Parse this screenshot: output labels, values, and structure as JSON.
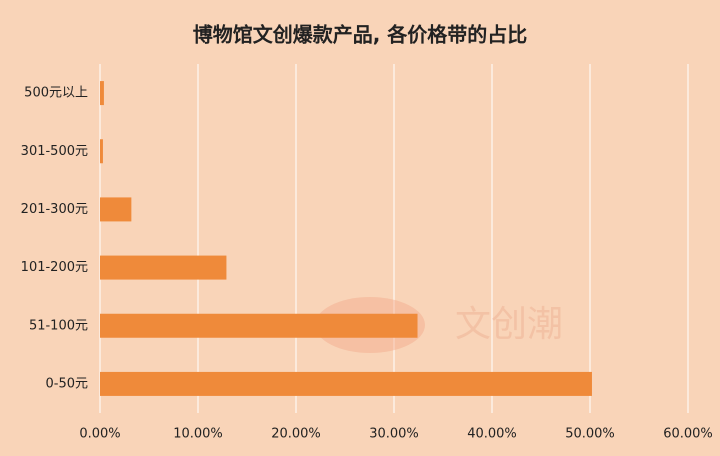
{
  "chart_data": {
    "type": "bar",
    "orientation": "horizontal",
    "title": "博物馆文创爆款产品, 各价格带的占比",
    "watermark": "文创潮",
    "categories": [
      "500元以上",
      "301-500元",
      "201-300元",
      "101-200元",
      "51-100元",
      "0-50元"
    ],
    "values": [
      0.4,
      0.3,
      3.2,
      12.9,
      32.4,
      50.2
    ],
    "color": "#ef8a3a",
    "xlim": [
      0,
      60
    ],
    "xticks": [
      {
        "value": 0,
        "label": "0.00%"
      },
      {
        "value": 10,
        "label": "10.00%"
      },
      {
        "value": 20,
        "label": "20.00%"
      },
      {
        "value": 30,
        "label": "30.00%"
      },
      {
        "value": 40,
        "label": "40.00%"
      },
      {
        "value": 50,
        "label": "50.00%"
      },
      {
        "value": 60,
        "label": "60.00%"
      }
    ],
    "grid": true
  }
}
